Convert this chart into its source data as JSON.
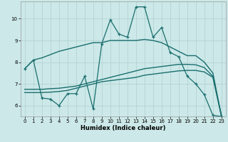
{
  "background_color": "#cce8e8",
  "grid_color": "#b0d0d0",
  "line_color": "#1a6e6e",
  "xlabel": "Humidex (Indice chaleur)",
  "xlim": [
    -0.5,
    23.5
  ],
  "ylim": [
    5.5,
    10.8
  ],
  "yticks": [
    6,
    7,
    8,
    9,
    10
  ],
  "xticks": [
    0,
    1,
    2,
    3,
    4,
    5,
    6,
    7,
    8,
    9,
    10,
    11,
    12,
    13,
    14,
    15,
    16,
    17,
    18,
    19,
    20,
    21,
    22,
    23
  ],
  "line1_x": [
    0,
    1,
    2,
    3,
    4,
    5,
    6,
    7,
    8,
    9,
    10,
    11,
    12,
    13,
    14,
    15,
    16,
    17,
    18,
    19,
    20,
    21,
    22,
    23
  ],
  "line1_y": [
    7.7,
    8.1,
    8.2,
    8.35,
    8.5,
    8.6,
    8.7,
    8.8,
    8.9,
    8.9,
    9.0,
    9.0,
    9.0,
    9.0,
    9.05,
    9.0,
    8.9,
    8.7,
    8.5,
    8.3,
    8.3,
    8.0,
    7.5,
    5.5
  ],
  "line2_x": [
    0,
    1,
    2,
    3,
    4,
    5,
    6,
    7,
    8,
    9,
    10,
    11,
    12,
    13,
    14,
    15,
    16,
    17,
    18,
    19,
    20,
    21,
    22,
    23
  ],
  "line2_y": [
    6.75,
    6.75,
    6.75,
    6.78,
    6.8,
    6.85,
    6.9,
    7.0,
    7.1,
    7.2,
    7.3,
    7.4,
    7.5,
    7.6,
    7.7,
    7.75,
    7.8,
    7.85,
    7.9,
    7.9,
    7.88,
    7.75,
    7.35,
    5.55
  ],
  "line3_x": [
    0,
    1,
    2,
    3,
    4,
    5,
    6,
    7,
    8,
    9,
    10,
    11,
    12,
    13,
    14,
    15,
    16,
    17,
    18,
    19,
    20,
    21,
    22,
    23
  ],
  "line3_y": [
    6.6,
    6.6,
    6.6,
    6.62,
    6.65,
    6.7,
    6.8,
    6.9,
    7.0,
    7.1,
    7.15,
    7.2,
    7.25,
    7.3,
    7.4,
    7.45,
    7.5,
    7.55,
    7.6,
    7.62,
    7.62,
    7.55,
    7.3,
    5.5
  ],
  "line4_x": [
    0,
    1,
    2,
    3,
    4,
    5,
    6,
    7,
    8,
    9,
    10,
    11,
    12,
    13,
    14,
    15,
    16,
    17,
    18,
    19,
    20,
    21,
    22,
    23
  ],
  "line4_y": [
    7.7,
    8.1,
    6.35,
    6.3,
    6.0,
    6.55,
    6.55,
    7.35,
    5.85,
    8.85,
    9.95,
    9.3,
    9.15,
    10.55,
    10.55,
    9.15,
    9.6,
    8.45,
    8.25,
    7.35,
    7.0,
    6.5,
    5.55,
    5.5
  ]
}
